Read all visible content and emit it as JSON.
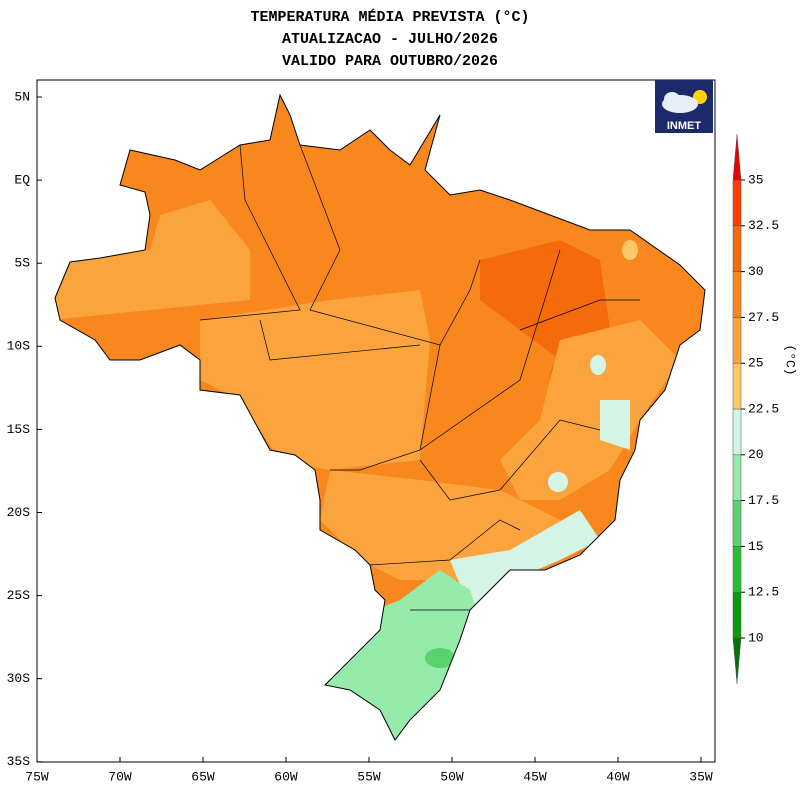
{
  "header": {
    "title_lines": [
      "TEMPERATURA MÉDIA PREVISTA (°C)",
      "ATUALIZACAO - JULHO/2026",
      "VALIDO PARA OUTUBRO/2026"
    ]
  },
  "axes": {
    "lat_labels": [
      "5N",
      "EQ",
      "5S",
      "10S",
      "15S",
      "20S",
      "25S",
      "30S",
      "35S"
    ],
    "lon_labels": [
      "75W",
      "70W",
      "65W",
      "60W",
      "55W",
      "50W",
      "45W",
      "40W",
      "35W"
    ]
  },
  "logo": "INMET",
  "colorbar": {
    "unit": "(°C)",
    "ticks": [
      10,
      12.5,
      15,
      17.5,
      20,
      22.5,
      25,
      27.5,
      30,
      32.5,
      35
    ],
    "colors": [
      "#087008",
      "#0a9b0a",
      "#28be32",
      "#5ad26e",
      "#96eaaa",
      "#d4f5e6",
      "#ffc864",
      "#fba33c",
      "#f8871e",
      "#f56a0a",
      "#ff3c00",
      "#e60000"
    ]
  }
}
